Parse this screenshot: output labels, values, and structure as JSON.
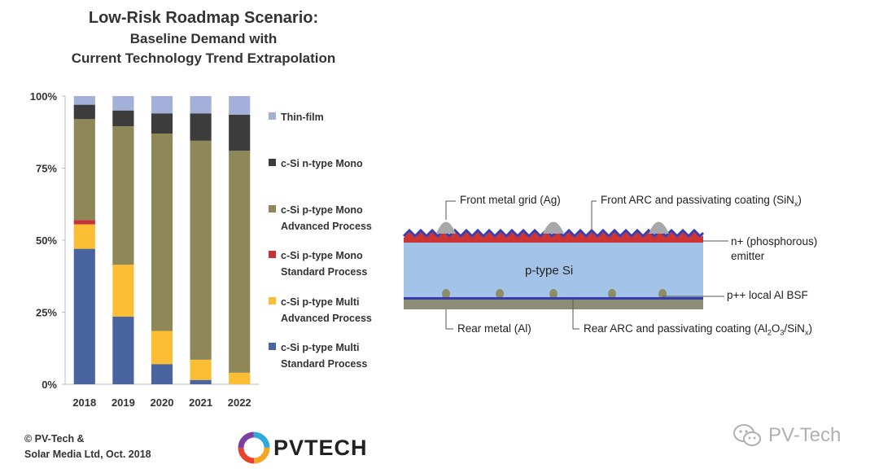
{
  "chart_data": {
    "type": "bar",
    "stacked": true,
    "title": "Low-Risk Roadmap Scenario:",
    "subtitle": [
      "Baseline Demand with",
      "Current Technology Trend Extrapolation"
    ],
    "categories": [
      "2018",
      "2019",
      "2020",
      "2021",
      "2022"
    ],
    "ylim": [
      0,
      100
    ],
    "yticks": [
      "0%",
      "25%",
      "50%",
      "75%",
      "100%"
    ],
    "series": [
      {
        "name": "c-Si p-type Multi Standard Process",
        "color": "#4a64a0",
        "values": [
          47,
          23.5,
          7,
          1.5,
          0
        ]
      },
      {
        "name": "c-Si p-type Multi Advanced Process",
        "color": "#fbbd33",
        "values": [
          8.5,
          18,
          11.5,
          7,
          4
        ]
      },
      {
        "name": "c-Si p-type Mono Standard Process",
        "color": "#c0333c",
        "values": [
          1.5,
          0,
          0,
          0,
          0
        ]
      },
      {
        "name": "c-Si p-type Mono Advanced Process",
        "color": "#8e8859",
        "values": [
          35,
          48,
          68.5,
          76,
          77
        ]
      },
      {
        "name": "c-Si n-type Mono",
        "color": "#3c3c3c",
        "values": [
          5,
          5.5,
          7,
          9.5,
          12.5
        ]
      },
      {
        "name": "Thin-film",
        "color": "#a3b0d8",
        "values": [
          3,
          5,
          6,
          6,
          6.5
        ]
      }
    ],
    "legend_position": "right",
    "legend_order": [
      {
        "lines": [
          "Thin-film"
        ],
        "color": "#a3b0d8"
      },
      {
        "lines": [
          "c-Si n-type Mono"
        ],
        "color": "#3c3c3c"
      },
      {
        "lines": [
          "c-Si p-type Mono",
          "Advanced Process"
        ],
        "color": "#8e8859"
      },
      {
        "lines": [
          "c-Si p-type Mono",
          "Standard Process"
        ],
        "color": "#c0333c"
      },
      {
        "lines": [
          "c-Si p-type Multi",
          "Advanced Process"
        ],
        "color": "#fbbd33"
      },
      {
        "lines": [
          "c-Si p-type Multi",
          "Standard Process"
        ],
        "color": "#4a64a0"
      }
    ],
    "grid": false
  },
  "credit": [
    "© PV-Tech &",
    "Solar Media Ltd, Oct. 2018"
  ],
  "logo_text": "PVTECH",
  "watermark_text": "PV-Tech",
  "diagram": {
    "front_grid": "Front metal grid (Ag)",
    "front_arc": "Front ARC and passivating coating (SiN",
    "front_arc_sub": "x",
    "front_arc_end": ")",
    "emitter_1": "n+ (phosphorous)",
    "emitter_2": "emitter",
    "substrate": "p-type Si",
    "bsf": "p++ local Al BSF",
    "rear_metal": "Rear metal (Al)",
    "rear_arc_1": "Rear ARC and passivating coating (Al",
    "rear_arc_sub1": "2",
    "rear_arc_2": "O",
    "rear_arc_sub2": "3",
    "rear_arc_3": "/SiN",
    "rear_arc_sub3": "x",
    "rear_arc_end": ")"
  }
}
